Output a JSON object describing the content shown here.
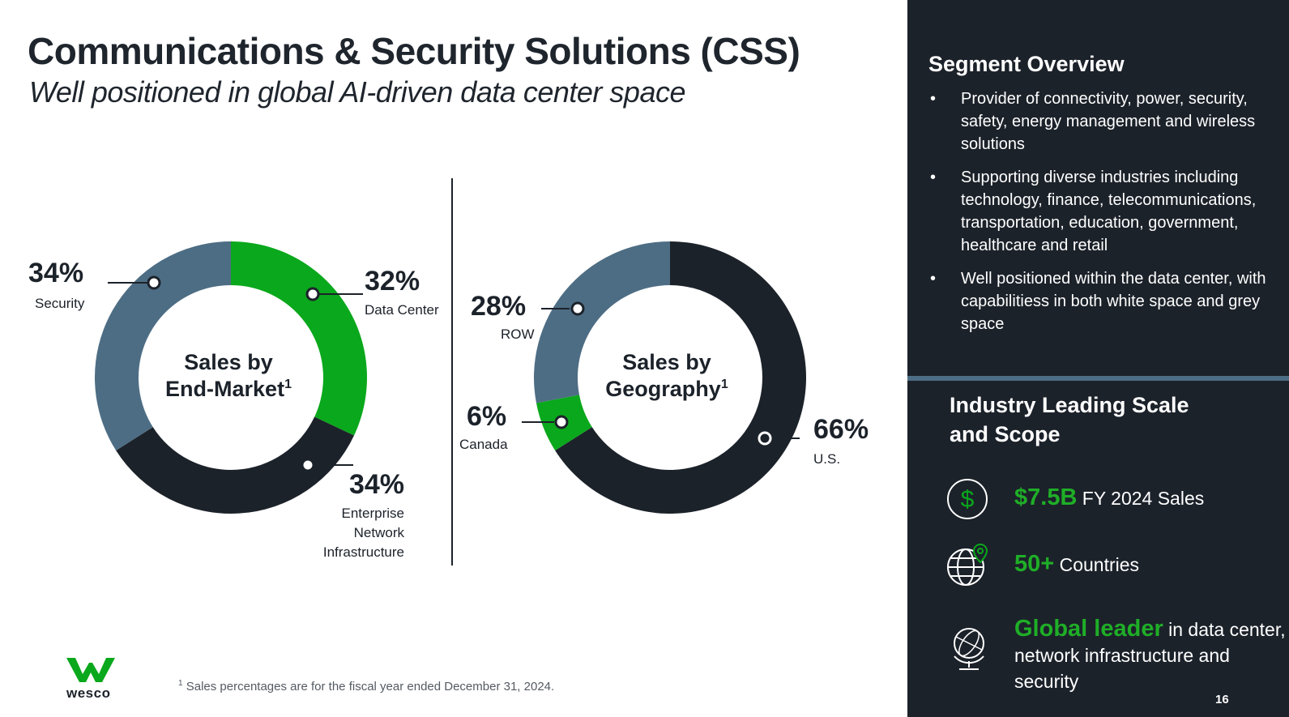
{
  "title": "Communications & Security Solutions (CSS)",
  "subtitle": "Well positioned in global AI-driven data center space",
  "chart_data": [
    {
      "type": "pie",
      "donut": true,
      "title_line1": "Sales by",
      "title_line2": "End-Market",
      "title_sup": "1",
      "slices": [
        {
          "label": "Data Center",
          "value": 32,
          "display": "32%",
          "color": "#0aa81c"
        },
        {
          "label_lines": [
            "Enterprise",
            "Network",
            "Infrastructure"
          ],
          "value": 34,
          "display": "34%",
          "color": "#1c222a"
        },
        {
          "label": "Security",
          "value": 34,
          "display": "34%",
          "color": "#4d6d84"
        }
      ]
    },
    {
      "type": "pie",
      "donut": true,
      "title_line1": "Sales by",
      "title_line2": "Geography",
      "title_sup": "1",
      "slices": [
        {
          "label": "U.S.",
          "value": 66,
          "display": "66%",
          "color": "#1c222a"
        },
        {
          "label": "Canada",
          "value": 6,
          "display": "6%",
          "color": "#0aa81c"
        },
        {
          "label": "ROW",
          "value": 28,
          "display": "28%",
          "color": "#4d6d84"
        }
      ]
    }
  ],
  "panel": {
    "segment_title": "Segment Overview",
    "bullets": [
      "Provider of connectivity, power, security, safety, energy management and wireless solutions",
      "Supporting diverse industries including technology, finance, telecommunications, transportation, education, government, healthcare and retail",
      "Well positioned within the data center, with capabilitiess in both white space and grey space"
    ],
    "scale_title": "Industry Leading Scale and Scope",
    "stats": [
      {
        "highlight": "$7.5B",
        "text": "FY 2024 Sales",
        "icon": "dollar-icon"
      },
      {
        "highlight": "50+",
        "text": "Countries",
        "icon": "globe-pin-icon"
      },
      {
        "highlight": "Global leader",
        "text": "in data center, network infrastructure and security",
        "icon": "globe-stand-icon"
      }
    ]
  },
  "footnote": "Sales percentages are for the fiscal year ended December 31, 2024.",
  "footnote_marker": "1",
  "logo_text": "wesco",
  "page_number": "16",
  "colors": {
    "green": "#0aa81c",
    "dark": "#1c222a",
    "slate": "#4d6d84",
    "highlight_green": "#1fae27"
  }
}
